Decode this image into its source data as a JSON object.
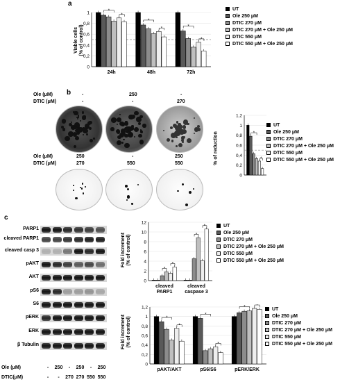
{
  "colors": [
    "#000000",
    "#595959",
    "#8c8c8c",
    "#bfbfbf",
    "#eeeeee",
    "#ffffff"
  ],
  "legend": [
    "UT",
    "Ole 250 μM",
    "DTIC 270 μM",
    "DTIC 270 μM + Ole 250 μM",
    "DTIC 550 μM",
    "DTIC 550 μM + Ole 250 μM"
  ],
  "panel_a": {
    "letter": "a",
    "ylabel_line1": "Viable cells",
    "ylabel_line2": "(% of control)"
  },
  "panel_b": {
    "letter": "b",
    "ole_label": "Ole (μM)",
    "dtic_label": "DTIC (μM)",
    "row1_ole": [
      "-",
      "250",
      "-"
    ],
    "row1_dtic": [
      "-",
      "-",
      "270"
    ],
    "row2_ole": [
      "250",
      "-",
      "250"
    ],
    "row2_dtic": [
      "270",
      "550",
      "550"
    ],
    "ylabel": "% of reduction"
  },
  "panel_c": {
    "letter": "c",
    "blot_labels": [
      "PARP1",
      "cleaved PARP1",
      "cleaved casp 3",
      "pAKT",
      "AKT",
      "pS6",
      "S6",
      "pERK",
      "ERK",
      "β Tubulin"
    ],
    "ole_label": "Ole (μM)",
    "dtic_label": "DTIC(μM)",
    "ole_values": [
      "-",
      "250",
      "-",
      "250",
      "-",
      "250"
    ],
    "dtic_values": [
      "-",
      "-",
      "270",
      "270",
      "550",
      "550"
    ],
    "upper_ylabel_line1": "Fold increment",
    "upper_ylabel_line2": "(% of control)",
    "lower_ylabel_line1": "Fold increment",
    "lower_ylabel_line2": "(% of control)"
  },
  "chart_data": [
    {
      "type": "bar",
      "categories": [
        "24h",
        "48h",
        "72h"
      ],
      "ylim": [
        0,
        1
      ],
      "yticks": [
        "0",
        "0,2",
        "0,4",
        "0,6",
        "0,8",
        "1"
      ],
      "reference_line": 0.5,
      "significance": "*",
      "series": [
        {
          "name": "UT",
          "values": [
            1.0,
            1.0,
            1.0
          ]
        },
        {
          "name": "Ole 250 μM",
          "values": [
            0.95,
            0.77,
            0.66
          ]
        },
        {
          "name": "DTIC 270 μM",
          "values": [
            0.92,
            0.7,
            0.52
          ]
        },
        {
          "name": "DTIC 270 μM + Ole 250 μM",
          "values": [
            0.84,
            0.61,
            0.36
          ]
        },
        {
          "name": "DTIC 550 μM",
          "values": [
            0.9,
            0.65,
            0.45
          ]
        },
        {
          "name": "DTIC 550 μM + Ole 250 μM",
          "values": [
            0.83,
            0.55,
            0.29
          ]
        }
      ]
    },
    {
      "type": "bar",
      "categories": [
        ""
      ],
      "ylim": [
        0,
        1.2
      ],
      "yticks": [
        "0",
        "0,2",
        "0,4",
        "0,6",
        "0,8",
        "1",
        "1,2"
      ],
      "reference_line": 0.5,
      "significance": "*",
      "series": [
        {
          "name": "UT",
          "values": [
            1.0
          ]
        },
        {
          "name": "Ole 250 μM",
          "values": [
            0.78
          ]
        },
        {
          "name": "DTIC 270 μM",
          "values": [
            0.43
          ]
        },
        {
          "name": "DTIC 270 μM + Ole 250 μM",
          "values": [
            0.33
          ]
        },
        {
          "name": "DTIC 550 μM",
          "values": [
            0.28
          ]
        },
        {
          "name": "DTIC 550 μM + Ole 250 μM",
          "values": [
            0.13
          ]
        }
      ]
    },
    {
      "type": "bar",
      "categories": [
        "cleaved PARP1",
        "cleaved caspase 3"
      ],
      "ylim": [
        0,
        12
      ],
      "yticks": [
        "0",
        "2",
        "4",
        "6",
        "8",
        "10",
        "12"
      ],
      "significance": "*",
      "series": [
        {
          "name": "UT",
          "values": [
            0.1,
            0.1
          ]
        },
        {
          "name": "Ole 250 μM",
          "values": [
            0.1,
            0.1
          ]
        },
        {
          "name": "DTIC 270 μM",
          "values": [
            1.0,
            4.5
          ]
        },
        {
          "name": "DTIC 270 μM + Ole 250 μM",
          "values": [
            1.8,
            8.8
          ]
        },
        {
          "name": "DTIC 550 μM",
          "values": [
            1.5,
            4.1
          ]
        },
        {
          "name": "DTIC 550 μM + Ole 250 μM",
          "values": [
            2.8,
            10.6
          ]
        }
      ]
    },
    {
      "type": "bar",
      "categories": [
        "pAKT/AKT",
        "pS6/S6",
        "pERK/ERK"
      ],
      "ylim": [
        0,
        1.2
      ],
      "yticks": [
        "0",
        "0,2",
        "0,4",
        "0,6",
        "0,8",
        "1",
        "1,2"
      ],
      "significance": "*",
      "series": [
        {
          "name": "UT",
          "values": [
            1.0,
            1.0,
            1.0
          ]
        },
        {
          "name": "Ole 250 μM",
          "values": [
            0.89,
            0.96,
            1.08
          ]
        },
        {
          "name": "DTIC 270 μM",
          "values": [
            0.73,
            0.28,
            1.11
          ]
        },
        {
          "name": "DTIC 270 μM + Ole 250 μM",
          "values": [
            0.5,
            0.32,
            1.12
          ]
        },
        {
          "name": "DTIC 550 μM",
          "values": [
            0.75,
            0.36,
            1.17
          ]
        },
        {
          "name": "DTIC 550 μM + Ole 250 μM",
          "values": [
            0.48,
            0.24,
            1.15
          ]
        }
      ]
    }
  ]
}
